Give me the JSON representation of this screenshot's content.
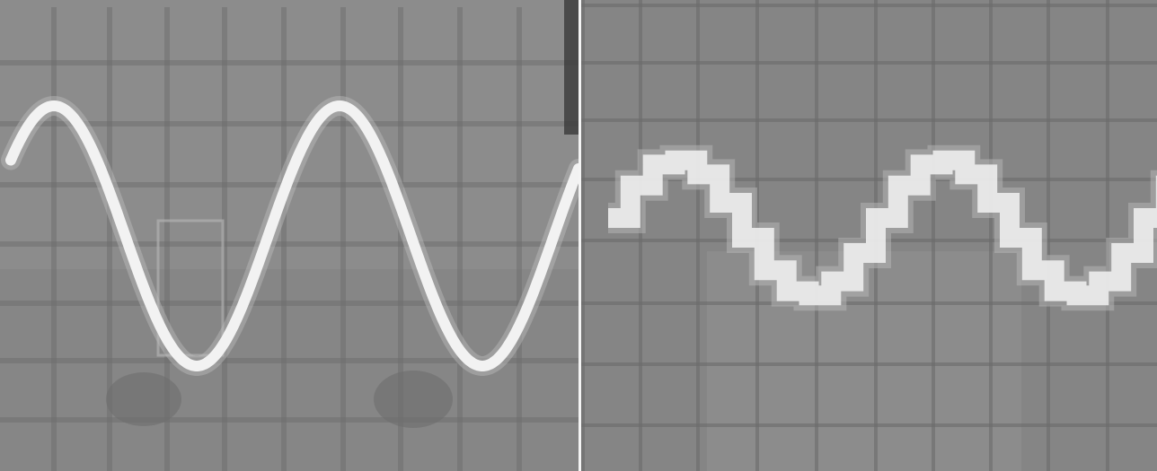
{
  "image": {
    "description_free": true,
    "panels": [
      {
        "id": "left",
        "waveform": "sine",
        "colors": {
          "screen": "#8c8c8c",
          "grid": "#6f6f6f",
          "trace": "#f2f2f2",
          "glow": "#bdbdbd",
          "shadow": "#7a7a7a"
        }
      },
      {
        "id": "right",
        "waveform": "stepped-sine",
        "colors": {
          "screen": "#858585",
          "grid": "#6c6c6c",
          "trace": "#ededed",
          "glow": "#b7b7b7",
          "shadow": "#7a7a7a"
        }
      }
    ]
  }
}
